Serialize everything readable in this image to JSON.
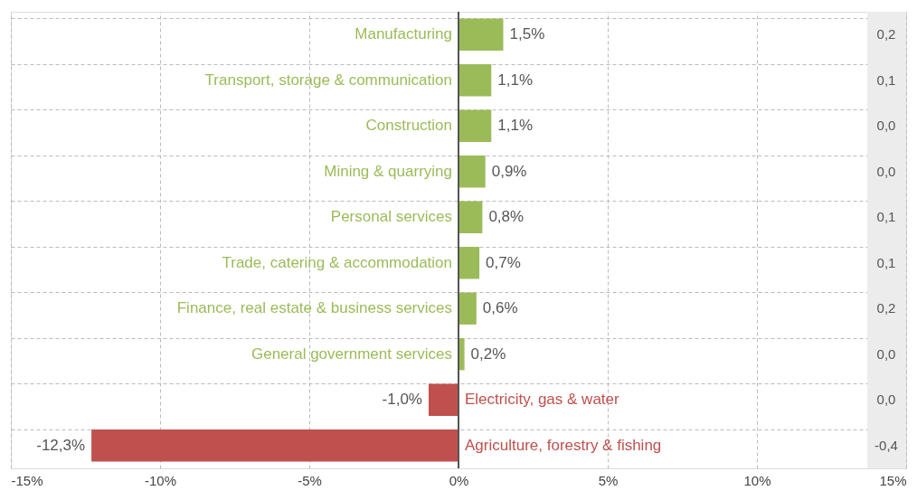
{
  "chart_data": {
    "type": "bar",
    "orientation": "horizontal",
    "categories": [
      "Manufacturing",
      "Transport, storage & communication",
      "Construction",
      "Mining & quarrying",
      "Personal services",
      "Trade, catering & accommodation",
      "Finance, real estate & business services",
      "General government services",
      "Electricity, gas & water",
      "Agriculture, forestry & fishing"
    ],
    "values": [
      1.5,
      1.1,
      1.1,
      0.9,
      0.8,
      0.7,
      0.6,
      0.2,
      -1.0,
      -12.3
    ],
    "colors": [
      "#9bbb59",
      "#9bbb59",
      "#9bbb59",
      "#9bbb59",
      "#9bbb59",
      "#9bbb59",
      "#9bbb59",
      "#9bbb59",
      "#c0504d",
      "#c0504d"
    ],
    "value_labels": [
      "1,5%",
      "1,1%",
      "1,1%",
      "0,9%",
      "0,8%",
      "0,7%",
      "0,6%",
      "0,2%",
      "-1,0%",
      "-12,3%"
    ],
    "xlim": [
      -15,
      15
    ],
    "xticks": [
      {
        "value": -15,
        "label": "-15%"
      },
      {
        "value": -10,
        "label": "-10%"
      },
      {
        "value": -5,
        "label": "-5%"
      },
      {
        "value": 0,
        "label": "0%"
      },
      {
        "value": 5,
        "label": "5%"
      },
      {
        "value": 10,
        "label": "10%"
      },
      {
        "value": 15,
        "label": "15%"
      }
    ],
    "bands": [
      {
        "axis": "x",
        "from": 13.7,
        "to": 15,
        "color": "#ececec"
      }
    ],
    "annotations": [
      "0,2",
      "0,1",
      "0,0",
      "0,0",
      "0,1",
      "0,1",
      "0,2",
      "0,0",
      "0,0",
      "-0,4"
    ],
    "grid": true
  }
}
